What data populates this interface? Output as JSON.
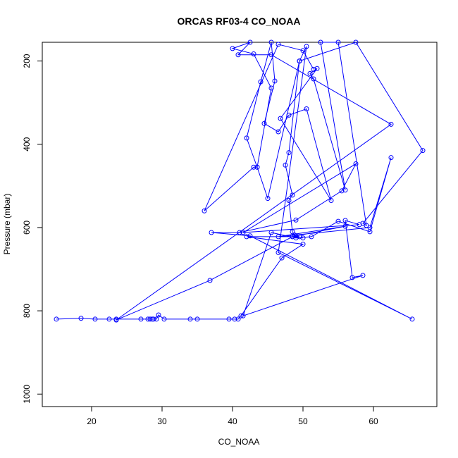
{
  "chart_data": {
    "type": "line",
    "title": "ORCAS RF03-4 CO_NOAA",
    "xlabel": "CO_NOAA",
    "ylabel": "Pressure (mbar)",
    "xlim": [
      13,
      69
    ],
    "ylim": [
      1030,
      155
    ],
    "y_reversed": true,
    "x_ticks": [
      20,
      30,
      40,
      50,
      60
    ],
    "y_ticks": [
      200,
      400,
      600,
      800,
      1000
    ],
    "grid": false,
    "legend": "none",
    "series_color": "#0000ff",
    "series": [
      {
        "points": [
          [
            15,
            820
          ],
          [
            18.5,
            818
          ],
          [
            20.5,
            820
          ],
          [
            22.5,
            820
          ],
          [
            23.5,
            820
          ],
          [
            27,
            820
          ],
          [
            28,
            820
          ],
          [
            28.3,
            820
          ],
          [
            28.6,
            820
          ],
          [
            28.8,
            820
          ],
          [
            29.2,
            820
          ],
          [
            29.5,
            810
          ],
          [
            30.3,
            820
          ],
          [
            34,
            820
          ],
          [
            35,
            820
          ],
          [
            39.5,
            820
          ],
          [
            40.3,
            820
          ],
          [
            40.8,
            820
          ],
          [
            41.2,
            812
          ],
          [
            47,
            673
          ],
          [
            50,
            640
          ],
          [
            42,
            622
          ],
          [
            49.5,
            622
          ],
          [
            49,
            620
          ],
          [
            48.8,
            618
          ],
          [
            48.5,
            610
          ],
          [
            48,
            535
          ],
          [
            48.5,
            522
          ],
          [
            47.5,
            450
          ],
          [
            48,
            420
          ],
          [
            49.5,
            200
          ],
          [
            50.5,
            165
          ],
          [
            46.5,
            660
          ],
          [
            65.5,
            820
          ],
          [
            42.5,
            620
          ],
          [
            37,
            612
          ],
          [
            41,
            612
          ],
          [
            49,
            582
          ],
          [
            55.5,
            512
          ],
          [
            57.5,
            447
          ],
          [
            41.5,
            612
          ],
          [
            58,
            593
          ],
          [
            56,
            583
          ],
          [
            57,
            720
          ],
          [
            58.5,
            715
          ],
          [
            41.5,
            812
          ],
          [
            45.5,
            612
          ],
          [
            49,
            625
          ],
          [
            51.2,
            622
          ],
          [
            55,
            585
          ],
          [
            59.5,
            610
          ],
          [
            62.5,
            432
          ],
          [
            59.5,
            600
          ],
          [
            46.5,
            622
          ],
          [
            56,
            597
          ],
          [
            48.5,
            622
          ],
          [
            50,
            625
          ],
          [
            48.5,
            622
          ],
          [
            36.8,
            727
          ],
          [
            23.5,
            822
          ],
          [
            62.5,
            352
          ],
          [
            45.5,
            185
          ],
          [
            40.8,
            185
          ],
          [
            42.5,
            155
          ],
          [
            40,
            170
          ],
          [
            43,
            183
          ],
          [
            45.5,
            265
          ],
          [
            43.5,
            455
          ],
          [
            42,
            385
          ],
          [
            44,
            250
          ],
          [
            45.5,
            155
          ],
          [
            46,
            248
          ],
          [
            44.5,
            350
          ],
          [
            46.5,
            370
          ],
          [
            48,
            330
          ],
          [
            50.5,
            315
          ],
          [
            54,
            535
          ],
          [
            46.8,
            338
          ],
          [
            52,
            218
          ],
          [
            51,
            230
          ],
          [
            51.5,
            243
          ],
          [
            56,
            510
          ],
          [
            52.5,
            155
          ],
          [
            55,
            155
          ],
          [
            59,
            595
          ],
          [
            58.5,
            590
          ],
          [
            67,
            415
          ],
          [
            57.5,
            155
          ],
          [
            49.5,
            200
          ],
          [
            45,
            530
          ],
          [
            43.5,
            455
          ],
          [
            43,
            455
          ],
          [
            36,
            560
          ],
          [
            46.5,
            160
          ],
          [
            50,
            175
          ],
          [
            51.5,
            220
          ]
        ]
      }
    ]
  }
}
